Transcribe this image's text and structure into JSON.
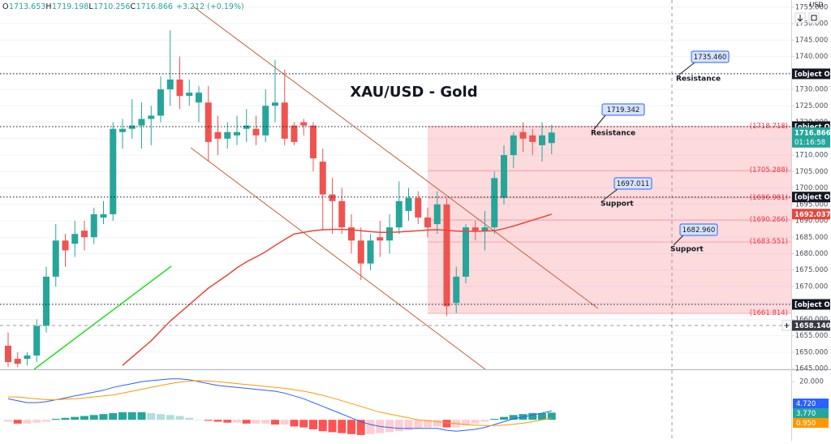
{
  "chart_data": [
    {
      "type": "candlestick",
      "title": "XAU/USD - Gold",
      "currency": "USD",
      "header": {
        "labels": [
          "O",
          "H",
          "L",
          "C"
        ],
        "change": "+3.212 (+0.19%)"
      },
      "open": [
        1652,
        1648,
        1648,
        1649,
        1658,
        1673,
        1684,
        1683,
        1687,
        1685,
        1691,
        1692,
        1717,
        1718,
        1719,
        1721,
        1722,
        1730,
        1733,
        1728,
        1726,
        1726,
        1717,
        1715,
        1716,
        1718,
        1718,
        1716,
        1725,
        1726,
        1719,
        1720,
        1719,
        1708,
        1698,
        1696,
        1688,
        1684,
        1677,
        1685,
        1684,
        1688,
        1693,
        1697,
        1691,
        1689,
        1695,
        1665,
        1673,
        1688,
        1687,
        1688,
        1697,
        1710,
        1717,
        1716,
        1713,
        1713.653
      ],
      "high": [
        1656,
        1650,
        1650,
        1660,
        1676,
        1689,
        1686,
        1690,
        1690,
        1694,
        1696,
        1720,
        1721,
        1727,
        1726,
        1725,
        1734,
        1748,
        1740,
        1733,
        1731,
        1731,
        1722,
        1720,
        1722,
        1724,
        1722,
        1730,
        1739,
        1736,
        1720,
        1721,
        1720,
        1712,
        1703,
        1700,
        1692,
        1688,
        1686,
        1690,
        1692,
        1702,
        1700,
        1699,
        1694,
        1699,
        1697,
        1676,
        1689,
        1690,
        1693,
        1705,
        1713,
        1717,
        1720,
        1718,
        1720,
        1719.198
      ],
      "low": [
        1645.5,
        1645.5,
        1646,
        1647,
        1656,
        1670,
        1676,
        1679,
        1681,
        1683,
        1689,
        1690,
        1712,
        1715,
        1712,
        1713,
        1720,
        1725,
        1724,
        1725,
        1720,
        1708,
        1710,
        1712,
        1713,
        1714,
        1713,
        1714,
        1720,
        1713,
        1713,
        1716,
        1705,
        1687,
        1686,
        1686,
        1680,
        1672,
        1675,
        1679,
        1680,
        1686,
        1690,
        1689,
        1685,
        1686,
        1661,
        1662,
        1671,
        1684,
        1681,
        1686,
        1695,
        1706,
        1711,
        1710,
        1708,
        1710.256
      ],
      "close": [
        1647,
        1646.5,
        1649,
        1658,
        1673,
        1684,
        1681,
        1686,
        1685,
        1692,
        1692,
        1718,
        1718,
        1719,
        1721,
        1722,
        1730,
        1733,
        1728,
        1729,
        1729,
        1714,
        1715,
        1717,
        1717,
        1719,
        1716,
        1725,
        1726,
        1715,
        1714,
        1719,
        1709,
        1698,
        1696,
        1688,
        1684,
        1677,
        1684,
        1684,
        1688,
        1696,
        1697,
        1691,
        1688,
        1695,
        1664,
        1673,
        1688,
        1687,
        1688,
        1703,
        1710,
        1716,
        1715,
        1714,
        1716,
        1716.866
      ],
      "up_color": "#26a69a",
      "down_color": "#ef5350",
      "moving_average": {
        "color": "#e8463c",
        "values": [
          null,
          null,
          null,
          null,
          null,
          null,
          null,
          null,
          null,
          null,
          null,
          null,
          1646,
          1648.5,
          1651,
          1653.5,
          1656.5,
          1659.5,
          1662,
          1664.5,
          1667,
          1669.5,
          1671.5,
          1673.5,
          1675.7,
          1677.5,
          1679,
          1680.6,
          1682.5,
          1684.3,
          1686,
          1686.5,
          1687,
          1687.3,
          1687.4,
          1687.4,
          1687.3,
          1687,
          1686.7,
          1686.5,
          1686.5,
          1686.6,
          1686.8,
          1687,
          1687.2,
          1687.3,
          1687.1,
          1686.9,
          1686.8,
          1686.8,
          1686.9,
          1687,
          1687.6,
          1688.4,
          1689.3,
          1690.2,
          1691.1,
          1692.037
        ]
      },
      "ylim": [
        1644.8,
        1757.2
      ],
      "yticks": [
        {
          "value": 1645,
          "label": "1645.000"
        },
        {
          "value": 1650,
          "label": "1650.000"
        },
        {
          "value": 1655,
          "label": "1655.000"
        },
        {
          "value": 1660,
          "label": "1660.000"
        },
        {
          "value": 1665,
          "label": "1665.000"
        },
        {
          "value": 1670,
          "label": "1670.000"
        },
        {
          "value": 1675,
          "label": "1675.000"
        },
        {
          "value": 1680,
          "label": "1680.000"
        },
        {
          "value": 1685,
          "label": "1685.000"
        },
        {
          "value": 1690,
          "label": "1690.000"
        },
        {
          "value": 1695,
          "label": "1695.000"
        },
        {
          "value": 1700,
          "label": "1700.000"
        },
        {
          "value": 1705,
          "label": "1705.000"
        },
        {
          "value": 1710,
          "label": "1710.000"
        },
        {
          "value": 1715,
          "label": "1715.000"
        },
        {
          "value": 1720,
          "label": "1720.000"
        },
        {
          "value": 1725,
          "label": "1725.000"
        },
        {
          "value": 1730,
          "label": "1730.000"
        },
        {
          "value": 1735,
          "label": "1735.000"
        },
        {
          "value": 1740,
          "label": "1740.000"
        },
        {
          "value": 1745,
          "label": "1745.000"
        },
        {
          "value": 1750,
          "label": "1750.000"
        },
        {
          "value": 1755,
          "label": "1755.000"
        }
      ],
      "grid": true,
      "countdown": "01:16:58",
      "price_lines": [
        {
          "value": 1734.736,
          "style": "dotted"
        },
        {
          "value": 1718.671,
          "style": "dotted"
        },
        {
          "value": 1697.239,
          "style": "dotted"
        },
        {
          "value": 1664.564,
          "style": "dotted"
        },
        {
          "value": 1658.14,
          "label": "1658.140",
          "style": "dashed"
        }
      ],
      "fib_zone": {
        "color": "#f23645",
        "levels": [
          {
            "value": 1718.718,
            "label": "(1718.718)"
          },
          {
            "value": 1705.288,
            "label": "(1705.288)"
          },
          {
            "value": 1696.981,
            "label": "(1696.981)"
          },
          {
            "value": 1690.266,
            "label": "(1690.266)"
          },
          {
            "value": 1683.551,
            "label": "(1683.551)"
          },
          {
            "value": 1661.814,
            "label": "(1661.814)"
          }
        ]
      },
      "annotations": [
        {
          "price": {
            "value": 1735.46,
            "label": "1735.460"
          },
          "text": "Resistance"
        },
        {
          "price": 1719.342,
          "text": "Resistance"
        },
        {
          "price": 1697.011,
          "text": "Support"
        },
        {
          "price": {
            "value": 1682.96,
            "label": "1682.960"
          },
          "text": "Support"
        }
      ]
    },
    {
      "type": "macd",
      "series": [
        {
          "color": "#2962ff",
          "last_label": "4.720",
          "values": [
            11,
            10,
            9,
            9,
            9.5,
            10.5,
            11.5,
            12.5,
            13.5,
            14.5,
            15.5,
            17,
            18,
            19,
            20,
            20.5,
            21,
            21.5,
            21.5,
            21,
            20,
            19,
            18,
            17.5,
            17,
            16.5,
            16,
            15.5,
            15,
            14,
            12.5,
            11,
            9,
            7,
            5,
            3,
            1,
            -1,
            -2.5,
            -3.5,
            -4,
            -4.5,
            -4.5,
            -4.5,
            -4.5,
            -4.5,
            -5.5,
            -6,
            -5.5,
            -5,
            -4,
            -2.5,
            -1,
            0.5,
            1.5,
            2.5,
            3.5,
            4.72
          ]
        },
        {
          "color": "#ff9800",
          "last_label": "0.950",
          "values": [
            12,
            12,
            11.5,
            11,
            10.5,
            10.5,
            10.8,
            11,
            11.5,
            12,
            12.5,
            13,
            14,
            15,
            16,
            17,
            18,
            19,
            19.8,
            20.3,
            20.5,
            20.3,
            20,
            19.5,
            19,
            18.5,
            18,
            17.5,
            17,
            16.5,
            15.8,
            15,
            14,
            12.8,
            11.5,
            10,
            8.5,
            7,
            5.5,
            4,
            3,
            2,
            1,
            0,
            -0.5,
            -1,
            -1.5,
            -2,
            -2.5,
            -2.8,
            -3,
            -3,
            -2.8,
            -2.3,
            -1.8,
            -1,
            0,
            0.95
          ]
        }
      ],
      "histogram": {
        "last_label": "3.770",
        "colors": [
          "#26a69a",
          "#b2dfdb",
          "#ff5252",
          "#ffcdd2"
        ],
        "values": [
          -1,
          -2,
          -2,
          -1.5,
          -1,
          0.5,
          1,
          1.5,
          2,
          2.5,
          3,
          3.5,
          4,
          4,
          4,
          3.5,
          3,
          2.5,
          2,
          1,
          0,
          -0.5,
          -1,
          -1.5,
          -1.5,
          -2,
          -2,
          -2,
          -2.5,
          -2.5,
          -3.5,
          -4,
          -5,
          -6,
          -6.5,
          -7,
          -7.5,
          -8,
          -7.5,
          -7,
          -6.5,
          -6,
          -5.5,
          -4.5,
          -4,
          -3.5,
          -4,
          -4,
          -3,
          -2,
          -1,
          0.5,
          1.5,
          2.5,
          3,
          3.5,
          3.5,
          3.77
        ]
      },
      "ylim": [
        -11,
        25.2
      ],
      "yticks": [
        {
          "value": 20,
          "label": "20.000"
        }
      ]
    }
  ]
}
